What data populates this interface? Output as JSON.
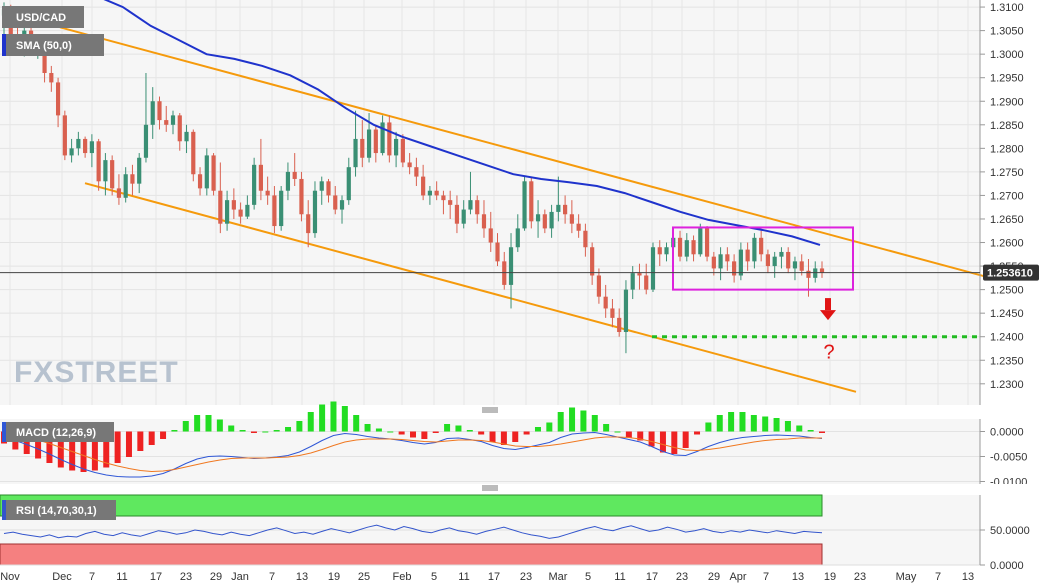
{
  "chart_data": {
    "type": "candlestick",
    "symbol": "USD/CAD",
    "indicators": {
      "sma": "SMA (50,0)",
      "macd": "MACD (12,26,9)",
      "rsi": "RSI (14,70,30,1)"
    },
    "last_price": "1.253610",
    "watermark": "FXSTREET",
    "annotation": "?",
    "price_axis": {
      "ylim": [
        1.2255,
        1.3115
      ],
      "ticks": [
        "1.3100",
        "1.3050",
        "1.3000",
        "1.2950",
        "1.2900",
        "1.2850",
        "1.2800",
        "1.2750",
        "1.2700",
        "1.2650",
        "1.2600",
        "1.2550",
        "1.2500",
        "1.2450",
        "1.2400",
        "1.2350",
        "1.2300"
      ]
    },
    "macd_axis": {
      "ylim": [
        -0.0105,
        0.0025
      ],
      "ticks": [
        "0.0000",
        "-0.0050",
        "-0.0100"
      ]
    },
    "rsi_axis": {
      "ylim": [
        0,
        100
      ],
      "ticks": [
        "50.0000",
        "0.0000"
      ]
    },
    "x_axis": {
      "labels": [
        "Nov",
        "Dec",
        "7",
        "11",
        "17",
        "23",
        "29",
        "Jan",
        "7",
        "13",
        "19",
        "25",
        "Feb",
        "5",
        "11",
        "17",
        "23",
        "Mar",
        "5",
        "11",
        "17",
        "23",
        "29",
        "Apr",
        "7",
        "13",
        "19",
        "23",
        "May",
        "7",
        "13"
      ]
    },
    "colors": {
      "bull": "#3a8f74",
      "bear": "#d9604f",
      "sma": "#1f33cc",
      "channel": "#f59a0c",
      "box": "#dd22dd",
      "support": "#22bb22",
      "arrow": "#e01414",
      "macd_line": "#2f57d6",
      "signal_line": "#f07820",
      "hist_pos": "#22dd22",
      "hist_neg": "#ee2222",
      "rsi_line": "#3355cc",
      "rsi_over": "#5fe85f",
      "rsi_under": "#f58080"
    },
    "channel_upper": [
      [
        1.312,
        1.26
      ],
      [
        1.3065,
        1.2535
      ]
    ],
    "channel_lower": [
      [
        1.2725,
        1.2275
      ],
      [
        1.2712,
        1.2285
      ]
    ],
    "support_level": 1.24,
    "consolidation_box": {
      "high": 1.2632,
      "low": 1.25
    },
    "sma_values": [
      1.3125,
      1.31,
      1.306,
      1.303,
      1.3,
      1.299,
      1.2975,
      1.2955,
      1.2925,
      1.2885,
      1.285,
      1.2825,
      1.2805,
      1.2785,
      1.2765,
      1.2745,
      1.2735,
      1.2728,
      1.272,
      1.2705,
      1.2685,
      1.2665,
      1.2648,
      1.2637,
      1.2626,
      1.2613,
      1.2595
    ],
    "candles": [
      {
        "o": 1.3082,
        "h": 1.311,
        "l": 1.3035,
        "c": 1.3095
      },
      {
        "o": 1.3095,
        "h": 1.3105,
        "l": 1.3025,
        "c": 1.304
      },
      {
        "o": 1.304,
        "h": 1.308,
        "l": 1.301,
        "c": 1.3025
      },
      {
        "o": 1.3025,
        "h": 1.306,
        "l": 1.2995,
        "c": 1.305
      },
      {
        "o": 1.305,
        "h": 1.3065,
        "l": 1.3,
        "c": 1.3015
      },
      {
        "o": 1.3015,
        "h": 1.304,
        "l": 1.299,
        "c": 1.303
      },
      {
        "o": 1.303,
        "h": 1.3035,
        "l": 1.294,
        "c": 1.296
      },
      {
        "o": 1.296,
        "h": 1.2975,
        "l": 1.292,
        "c": 1.294
      },
      {
        "o": 1.294,
        "h": 1.295,
        "l": 1.2845,
        "c": 1.287
      },
      {
        "o": 1.287,
        "h": 1.288,
        "l": 1.2775,
        "c": 1.2785
      },
      {
        "o": 1.2785,
        "h": 1.282,
        "l": 1.277,
        "c": 1.28
      },
      {
        "o": 1.28,
        "h": 1.2835,
        "l": 1.2785,
        "c": 1.282
      },
      {
        "o": 1.282,
        "h": 1.2825,
        "l": 1.278,
        "c": 1.279
      },
      {
        "o": 1.279,
        "h": 1.283,
        "l": 1.276,
        "c": 1.2815
      },
      {
        "o": 1.2815,
        "h": 1.282,
        "l": 1.271,
        "c": 1.273
      },
      {
        "o": 1.273,
        "h": 1.279,
        "l": 1.27,
        "c": 1.2775
      },
      {
        "o": 1.2775,
        "h": 1.2785,
        "l": 1.27,
        "c": 1.2715
      },
      {
        "o": 1.2715,
        "h": 1.2745,
        "l": 1.268,
        "c": 1.2695
      },
      {
        "o": 1.2695,
        "h": 1.276,
        "l": 1.2685,
        "c": 1.2745
      },
      {
        "o": 1.2745,
        "h": 1.2765,
        "l": 1.27,
        "c": 1.2725
      },
      {
        "o": 1.2725,
        "h": 1.279,
        "l": 1.2705,
        "c": 1.278
      },
      {
        "o": 1.278,
        "h": 1.296,
        "l": 1.277,
        "c": 1.285
      },
      {
        "o": 1.285,
        "h": 1.293,
        "l": 1.282,
        "c": 1.29
      },
      {
        "o": 1.29,
        "h": 1.291,
        "l": 1.284,
        "c": 1.286
      },
      {
        "o": 1.286,
        "h": 1.289,
        "l": 1.2835,
        "c": 1.285
      },
      {
        "o": 1.285,
        "h": 1.288,
        "l": 1.283,
        "c": 1.287
      },
      {
        "o": 1.287,
        "h": 1.2875,
        "l": 1.2795,
        "c": 1.2815
      },
      {
        "o": 1.2815,
        "h": 1.285,
        "l": 1.279,
        "c": 1.2835
      },
      {
        "o": 1.2835,
        "h": 1.284,
        "l": 1.273,
        "c": 1.2745
      },
      {
        "o": 1.2745,
        "h": 1.276,
        "l": 1.27,
        "c": 1.2715
      },
      {
        "o": 1.2715,
        "h": 1.28,
        "l": 1.27,
        "c": 1.2785
      },
      {
        "o": 1.2785,
        "h": 1.279,
        "l": 1.27,
        "c": 1.271
      },
      {
        "o": 1.271,
        "h": 1.277,
        "l": 1.262,
        "c": 1.264
      },
      {
        "o": 1.264,
        "h": 1.271,
        "l": 1.2625,
        "c": 1.269
      },
      {
        "o": 1.269,
        "h": 1.2715,
        "l": 1.265,
        "c": 1.267
      },
      {
        "o": 1.267,
        "h": 1.2685,
        "l": 1.264,
        "c": 1.2655
      },
      {
        "o": 1.2655,
        "h": 1.27,
        "l": 1.265,
        "c": 1.268
      },
      {
        "o": 1.268,
        "h": 1.278,
        "l": 1.267,
        "c": 1.2765
      },
      {
        "o": 1.2765,
        "h": 1.282,
        "l": 1.269,
        "c": 1.271
      },
      {
        "o": 1.271,
        "h": 1.274,
        "l": 1.268,
        "c": 1.27
      },
      {
        "o": 1.27,
        "h": 1.272,
        "l": 1.262,
        "c": 1.2635
      },
      {
        "o": 1.2635,
        "h": 1.272,
        "l": 1.2625,
        "c": 1.271
      },
      {
        "o": 1.271,
        "h": 1.277,
        "l": 1.269,
        "c": 1.275
      },
      {
        "o": 1.275,
        "h": 1.279,
        "l": 1.272,
        "c": 1.2735
      },
      {
        "o": 1.2735,
        "h": 1.275,
        "l": 1.2645,
        "c": 1.266
      },
      {
        "o": 1.266,
        "h": 1.269,
        "l": 1.259,
        "c": 1.262
      },
      {
        "o": 1.262,
        "h": 1.273,
        "l": 1.261,
        "c": 1.271
      },
      {
        "o": 1.271,
        "h": 1.274,
        "l": 1.268,
        "c": 1.273
      },
      {
        "o": 1.273,
        "h": 1.2735,
        "l": 1.2685,
        "c": 1.27
      },
      {
        "o": 1.27,
        "h": 1.272,
        "l": 1.266,
        "c": 1.267
      },
      {
        "o": 1.267,
        "h": 1.27,
        "l": 1.264,
        "c": 1.269
      },
      {
        "o": 1.269,
        "h": 1.278,
        "l": 1.268,
        "c": 1.276
      },
      {
        "o": 1.276,
        "h": 1.288,
        "l": 1.274,
        "c": 1.282
      },
      {
        "o": 1.282,
        "h": 1.286,
        "l": 1.276,
        "c": 1.278
      },
      {
        "o": 1.278,
        "h": 1.2875,
        "l": 1.277,
        "c": 1.284
      },
      {
        "o": 1.284,
        "h": 1.285,
        "l": 1.277,
        "c": 1.279
      },
      {
        "o": 1.279,
        "h": 1.287,
        "l": 1.2785,
        "c": 1.2855
      },
      {
        "o": 1.2855,
        "h": 1.287,
        "l": 1.277,
        "c": 1.2785
      },
      {
        "o": 1.2785,
        "h": 1.2835,
        "l": 1.276,
        "c": 1.282
      },
      {
        "o": 1.282,
        "h": 1.283,
        "l": 1.276,
        "c": 1.277
      },
      {
        "o": 1.277,
        "h": 1.279,
        "l": 1.2745,
        "c": 1.276
      },
      {
        "o": 1.276,
        "h": 1.278,
        "l": 1.272,
        "c": 1.274
      },
      {
        "o": 1.274,
        "h": 1.2765,
        "l": 1.269,
        "c": 1.27
      },
      {
        "o": 1.27,
        "h": 1.272,
        "l": 1.268,
        "c": 1.271
      },
      {
        "o": 1.271,
        "h": 1.273,
        "l": 1.269,
        "c": 1.27
      },
      {
        "o": 1.27,
        "h": 1.271,
        "l": 1.266,
        "c": 1.269
      },
      {
        "o": 1.269,
        "h": 1.271,
        "l": 1.265,
        "c": 1.268
      },
      {
        "o": 1.268,
        "h": 1.27,
        "l": 1.262,
        "c": 1.264
      },
      {
        "o": 1.264,
        "h": 1.269,
        "l": 1.263,
        "c": 1.267
      },
      {
        "o": 1.267,
        "h": 1.275,
        "l": 1.266,
        "c": 1.269
      },
      {
        "o": 1.269,
        "h": 1.27,
        "l": 1.264,
        "c": 1.266
      },
      {
        "o": 1.266,
        "h": 1.269,
        "l": 1.261,
        "c": 1.263
      },
      {
        "o": 1.263,
        "h": 1.2665,
        "l": 1.258,
        "c": 1.26
      },
      {
        "o": 1.26,
        "h": 1.262,
        "l": 1.255,
        "c": 1.256
      },
      {
        "o": 1.256,
        "h": 1.258,
        "l": 1.25,
        "c": 1.251
      },
      {
        "o": 1.251,
        "h": 1.262,
        "l": 1.246,
        "c": 1.259
      },
      {
        "o": 1.259,
        "h": 1.266,
        "l": 1.258,
        "c": 1.263
      },
      {
        "o": 1.263,
        "h": 1.274,
        "l": 1.2625,
        "c": 1.273
      },
      {
        "o": 1.273,
        "h": 1.274,
        "l": 1.263,
        "c": 1.2645
      },
      {
        "o": 1.2645,
        "h": 1.269,
        "l": 1.261,
        "c": 1.266
      },
      {
        "o": 1.266,
        "h": 1.267,
        "l": 1.262,
        "c": 1.263
      },
      {
        "o": 1.263,
        "h": 1.268,
        "l": 1.261,
        "c": 1.2665
      },
      {
        "o": 1.2665,
        "h": 1.274,
        "l": 1.2645,
        "c": 1.268
      },
      {
        "o": 1.268,
        "h": 1.27,
        "l": 1.264,
        "c": 1.266
      },
      {
        "o": 1.266,
        "h": 1.269,
        "l": 1.262,
        "c": 1.264
      },
      {
        "o": 1.264,
        "h": 1.266,
        "l": 1.261,
        "c": 1.2625
      },
      {
        "o": 1.2625,
        "h": 1.264,
        "l": 1.257,
        "c": 1.259
      },
      {
        "o": 1.259,
        "h": 1.26,
        "l": 1.251,
        "c": 1.253
      },
      {
        "o": 1.253,
        "h": 1.2545,
        "l": 1.247,
        "c": 1.2485
      },
      {
        "o": 1.2485,
        "h": 1.251,
        "l": 1.244,
        "c": 1.246
      },
      {
        "o": 1.246,
        "h": 1.248,
        "l": 1.242,
        "c": 1.244
      },
      {
        "o": 1.244,
        "h": 1.246,
        "l": 1.24,
        "c": 1.241
      },
      {
        "o": 1.241,
        "h": 1.252,
        "l": 1.2365,
        "c": 1.25
      },
      {
        "o": 1.25,
        "h": 1.255,
        "l": 1.248,
        "c": 1.2535
      },
      {
        "o": 1.2535,
        "h": 1.2555,
        "l": 1.25,
        "c": 1.253
      },
      {
        "o": 1.253,
        "h": 1.2555,
        "l": 1.249,
        "c": 1.25
      },
      {
        "o": 1.25,
        "h": 1.26,
        "l": 1.2495,
        "c": 1.259
      },
      {
        "o": 1.259,
        "h": 1.2605,
        "l": 1.255,
        "c": 1.2575
      },
      {
        "o": 1.2575,
        "h": 1.26,
        "l": 1.256,
        "c": 1.259
      },
      {
        "o": 1.259,
        "h": 1.262,
        "l": 1.2565,
        "c": 1.261
      },
      {
        "o": 1.261,
        "h": 1.2625,
        "l": 1.256,
        "c": 1.257
      },
      {
        "o": 1.257,
        "h": 1.262,
        "l": 1.256,
        "c": 1.2605
      },
      {
        "o": 1.2605,
        "h": 1.2615,
        "l": 1.256,
        "c": 1.2575
      },
      {
        "o": 1.2575,
        "h": 1.264,
        "l": 1.257,
        "c": 1.263
      },
      {
        "o": 1.263,
        "h": 1.2635,
        "l": 1.256,
        "c": 1.257
      },
      {
        "o": 1.257,
        "h": 1.258,
        "l": 1.253,
        "c": 1.2545
      },
      {
        "o": 1.2545,
        "h": 1.259,
        "l": 1.252,
        "c": 1.2575
      },
      {
        "o": 1.2575,
        "h": 1.259,
        "l": 1.254,
        "c": 1.256
      },
      {
        "o": 1.256,
        "h": 1.2575,
        "l": 1.2515,
        "c": 1.253
      },
      {
        "o": 1.253,
        "h": 1.26,
        "l": 1.252,
        "c": 1.2585
      },
      {
        "o": 1.2585,
        "h": 1.26,
        "l": 1.254,
        "c": 1.256
      },
      {
        "o": 1.256,
        "h": 1.262,
        "l": 1.2545,
        "c": 1.261
      },
      {
        "o": 1.261,
        "h": 1.2625,
        "l": 1.256,
        "c": 1.2575
      },
      {
        "o": 1.2575,
        "h": 1.2585,
        "l": 1.2535,
        "c": 1.255
      },
      {
        "o": 1.255,
        "h": 1.258,
        "l": 1.2525,
        "c": 1.257
      },
      {
        "o": 1.257,
        "h": 1.259,
        "l": 1.2545,
        "c": 1.258
      },
      {
        "o": 1.258,
        "h": 1.259,
        "l": 1.2535,
        "c": 1.2545
      },
      {
        "o": 1.2545,
        "h": 1.257,
        "l": 1.252,
        "c": 1.256
      },
      {
        "o": 1.256,
        "h": 1.2575,
        "l": 1.253,
        "c": 1.254
      },
      {
        "o": 1.254,
        "h": 1.2565,
        "l": 1.2485,
        "c": 1.2525
      },
      {
        "o": 1.2525,
        "h": 1.256,
        "l": 1.2515,
        "c": 1.2545
      },
      {
        "o": 1.2545,
        "h": 1.256,
        "l": 1.2525,
        "c": 1.2536
      }
    ],
    "macd": [
      -0.001,
      -0.0018,
      -0.0026,
      -0.0035,
      -0.0045,
      -0.0056,
      -0.0066,
      -0.0075,
      -0.0082,
      -0.0087,
      -0.009,
      -0.0091,
      -0.0091,
      -0.0089,
      -0.0084,
      -0.0075,
      -0.0064,
      -0.0055,
      -0.005,
      -0.0049,
      -0.005,
      -0.0052,
      -0.0054,
      -0.0053,
      -0.0051,
      -0.0048,
      -0.0041,
      -0.003,
      -0.0018,
      -0.0008,
      -0.0004,
      -0.0006,
      -0.001,
      -0.0013,
      -0.0015,
      -0.0018,
      -0.0022,
      -0.0025,
      -0.0022,
      -0.0014,
      -0.0013,
      -0.0016,
      -0.002,
      -0.0028,
      -0.0034,
      -0.0036,
      -0.0032,
      -0.0027,
      -0.0022,
      -0.0012,
      -0.0005,
      -0.0003,
      -0.0002,
      -0.0006,
      -0.0011,
      -0.0016,
      -0.0021,
      -0.003,
      -0.004,
      -0.0047,
      -0.0048,
      -0.004,
      -0.003,
      -0.0022,
      -0.0016,
      -0.0012,
      -0.001,
      -0.0008,
      -0.0007,
      -0.0008,
      -0.0009,
      -0.0012,
      -0.0014
    ],
    "signal": [
      -0.0002,
      -0.0006,
      -0.0011,
      -0.0017,
      -0.0024,
      -0.0032,
      -0.004,
      -0.0048,
      -0.0056,
      -0.0063,
      -0.0069,
      -0.0074,
      -0.0078,
      -0.008,
      -0.0079,
      -0.0076,
      -0.0071,
      -0.0066,
      -0.0061,
      -0.0057,
      -0.0054,
      -0.0053,
      -0.0053,
      -0.0053,
      -0.0052,
      -0.0051,
      -0.0048,
      -0.0043,
      -0.0036,
      -0.0028,
      -0.0021,
      -0.0017,
      -0.0015,
      -0.0015,
      -0.0015,
      -0.0016,
      -0.0018,
      -0.002,
      -0.0021,
      -0.0019,
      -0.0017,
      -0.0017,
      -0.0018,
      -0.0021,
      -0.0025,
      -0.0029,
      -0.003,
      -0.003,
      -0.0028,
      -0.0025,
      -0.0021,
      -0.0017,
      -0.0013,
      -0.0011,
      -0.0011,
      -0.0012,
      -0.0015,
      -0.002,
      -0.0026,
      -0.0032,
      -0.0037,
      -0.0038,
      -0.0036,
      -0.0033,
      -0.0029,
      -0.0025,
      -0.0021,
      -0.0018,
      -0.0016,
      -0.0015,
      -0.0013,
      -0.0013,
      -0.0013
    ],
    "rsi": [
      45,
      47,
      44,
      42,
      40,
      43,
      39,
      41,
      40,
      45,
      48,
      44,
      42,
      46,
      43,
      41,
      45,
      49,
      47,
      44,
      46,
      50,
      48,
      45,
      43,
      47,
      44,
      42,
      46,
      50,
      53,
      49,
      45,
      47,
      44,
      48,
      52,
      49,
      46,
      50,
      54,
      57,
      53,
      50,
      55,
      52,
      48,
      46,
      50,
      53,
      49,
      47,
      44,
      48,
      51,
      54,
      50,
      46,
      43,
      41,
      38,
      40,
      44,
      48,
      52,
      55,
      51,
      49,
      53,
      56,
      52,
      48,
      50,
      54,
      51,
      47,
      49,
      52,
      48,
      46,
      49,
      47,
      50,
      48,
      46,
      49,
      47,
      45,
      48,
      47,
      46
    ]
  }
}
